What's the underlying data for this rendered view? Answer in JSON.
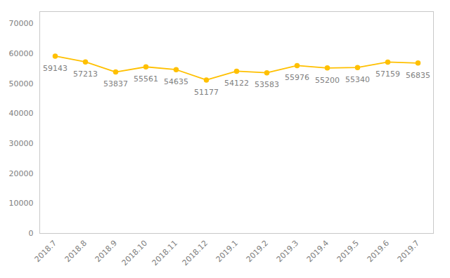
{
  "chart_data": {
    "type": "line",
    "categories": [
      "2018.7",
      "2018.8",
      "2018.9",
      "2018.10",
      "2018.11",
      "2018.12",
      "2019.1",
      "2019.2",
      "2019.3",
      "2019.4",
      "2019.5",
      "2019.6",
      "2019.7"
    ],
    "values": [
      59143,
      57213,
      53837,
      55561,
      54635,
      51177,
      54122,
      53583,
      55976,
      55200,
      55340,
      57159,
      56835
    ],
    "color": "#FFC000",
    "marker": "circle",
    "ylim": [
      0,
      74000
    ],
    "yticks": [
      0,
      10000,
      20000,
      30000,
      40000,
      50000,
      60000,
      70000
    ],
    "grid": false,
    "data_labels": true
  }
}
